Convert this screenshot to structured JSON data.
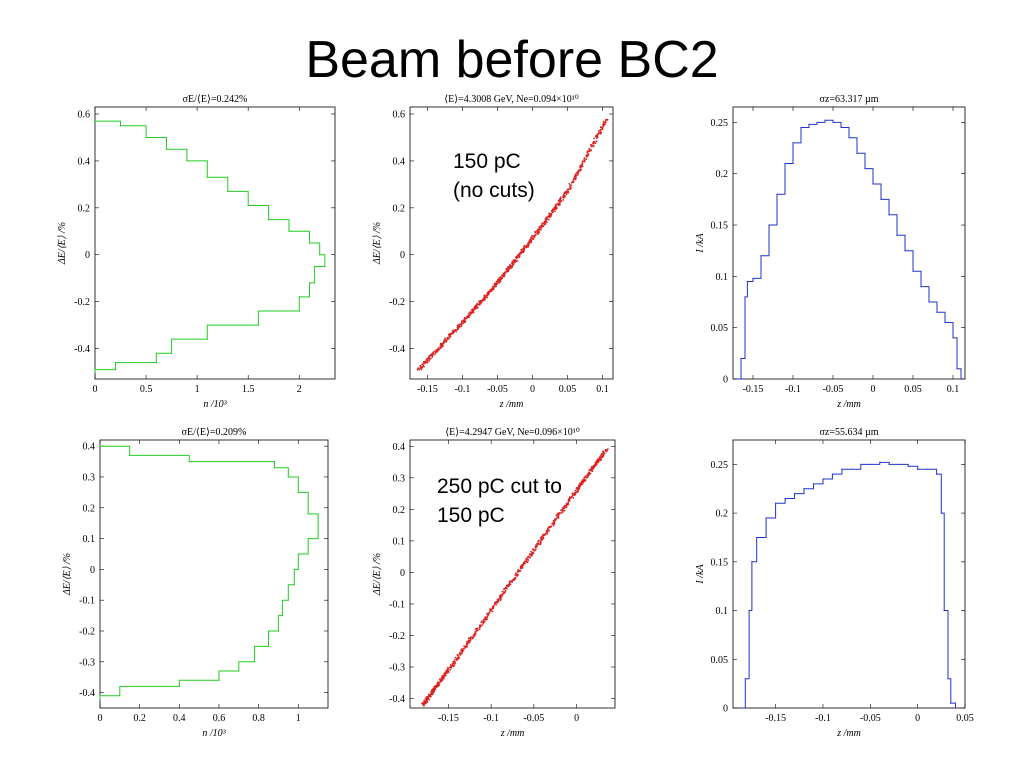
{
  "slide": {
    "title": "Beam before BC2",
    "annotation_top": "150 pC\n(no cuts)",
    "annotation_bottom": "250 pC cut to\n150 pC"
  },
  "chart_data": [
    {
      "type": "line",
      "plot_title": "σE/⟨E⟩=0.242%",
      "xlabel": "n /10³",
      "ylabel": "ΔE/⟨E⟩ /%",
      "xlim": [
        0,
        2.35
      ],
      "ylim": [
        -0.53,
        0.63
      ],
      "xticks": [
        0,
        0.5,
        1,
        1.5,
        2
      ],
      "xtick_labels": [
        "0",
        "0.5",
        "1",
        "1.5",
        "2"
      ],
      "yticks": [
        -0.4,
        -0.2,
        0,
        0.2,
        0.4,
        0.6
      ],
      "ytick_labels": [
        "-0.4",
        "-0.2",
        "0",
        "0.2",
        "0.4",
        "0.6"
      ],
      "color": "#22cc22",
      "series": [
        {
          "x": [
            0.0,
            0.25,
            0.5,
            0.7,
            0.9,
            1.1,
            1.3,
            1.5,
            1.7,
            1.9,
            2.1,
            2.2,
            2.25,
            2.15,
            2.1,
            2.0,
            1.6,
            1.1,
            0.75,
            0.6,
            0.2,
            0.0
          ],
          "y": [
            0.57,
            0.55,
            0.5,
            0.45,
            0.4,
            0.33,
            0.27,
            0.21,
            0.15,
            0.1,
            0.05,
            0.0,
            -0.05,
            -0.12,
            -0.18,
            -0.24,
            -0.3,
            -0.36,
            -0.42,
            -0.46,
            -0.49,
            -0.5
          ]
        }
      ]
    },
    {
      "type": "scatter",
      "plot_title": "⟨E⟩=4.3008 GeV, Ne=0.094×10¹⁰",
      "xlabel": "z /mm",
      "ylabel": "ΔE/⟨E⟩ /%",
      "xlim": [
        -0.175,
        0.115
      ],
      "ylim": [
        -0.53,
        0.63
      ],
      "xticks": [
        -0.15,
        -0.1,
        -0.05,
        0,
        0.05,
        0.1
      ],
      "xtick_labels": [
        "-0.15",
        "-0.1",
        "-0.05",
        "0",
        "0.05",
        "0.1"
      ],
      "yticks": [
        -0.4,
        -0.2,
        0,
        0.2,
        0.4,
        0.6
      ],
      "ytick_labels": [
        "-0.4",
        "-0.2",
        "0",
        "0.2",
        "0.4",
        "0.6"
      ],
      "color": "#dd2222",
      "series": [
        {
          "x": [
            -0.163,
            -0.1,
            -0.05,
            0.0,
            0.05,
            0.106
          ],
          "y": [
            -0.49,
            -0.29,
            -0.12,
            0.07,
            0.27,
            0.58
          ]
        }
      ]
    },
    {
      "type": "line",
      "plot_title": "σz=63.317 µm",
      "xlabel": "z /mm",
      "ylabel": "I /kA",
      "xlim": [
        -0.175,
        0.115
      ],
      "ylim": [
        0,
        0.265
      ],
      "xticks": [
        -0.15,
        -0.1,
        -0.05,
        0,
        0.05,
        0.1
      ],
      "xtick_labels": [
        "-0.15",
        "-0.1",
        "-0.05",
        "0",
        "0.05",
        "0.1"
      ],
      "yticks": [
        0,
        0.05,
        0.1,
        0.15,
        0.2,
        0.25
      ],
      "ytick_labels": [
        "0",
        "0.05",
        "0.1",
        "0.15",
        "0.2",
        "0.25"
      ],
      "color": "#2233cc",
      "series": [
        {
          "x": [
            -0.17,
            -0.165,
            -0.16,
            -0.157,
            -0.15,
            -0.14,
            -0.13,
            -0.12,
            -0.11,
            -0.1,
            -0.09,
            -0.08,
            -0.07,
            -0.06,
            -0.05,
            -0.04,
            -0.03,
            -0.02,
            -0.01,
            0.0,
            0.01,
            0.02,
            0.03,
            0.04,
            0.05,
            0.06,
            0.07,
            0.08,
            0.09,
            0.1,
            0.105,
            0.11
          ],
          "y": [
            0.0,
            0.02,
            0.08,
            0.095,
            0.098,
            0.12,
            0.15,
            0.18,
            0.21,
            0.23,
            0.245,
            0.248,
            0.25,
            0.252,
            0.25,
            0.245,
            0.235,
            0.22,
            0.205,
            0.19,
            0.175,
            0.16,
            0.14,
            0.125,
            0.105,
            0.09,
            0.075,
            0.065,
            0.055,
            0.04,
            0.01,
            0.0
          ]
        }
      ]
    },
    {
      "type": "line",
      "plot_title": "σE/⟨E⟩=0.209%",
      "xlabel": "n /10³",
      "ylabel": "ΔE/⟨E⟩ /%",
      "xlim": [
        0,
        1.15
      ],
      "ylim": [
        -0.45,
        0.42
      ],
      "xticks": [
        0,
        0.2,
        0.4,
        0.6,
        0.8,
        1
      ],
      "xtick_labels": [
        "0",
        "0.2",
        "0.4",
        "0.6",
        "0.8",
        "1"
      ],
      "yticks": [
        -0.4,
        -0.3,
        -0.2,
        -0.1,
        0,
        0.1,
        0.2,
        0.3,
        0.4
      ],
      "ytick_labels": [
        "-0.4",
        "-0.3",
        "-0.2",
        "-0.1",
        "0",
        "0.1",
        "0.2",
        "0.3",
        "0.4"
      ],
      "color": "#22cc22",
      "series": [
        {
          "x": [
            0.0,
            0.15,
            0.45,
            0.88,
            0.95,
            1.0,
            1.05,
            1.1,
            1.05,
            1.0,
            0.98,
            0.95,
            0.92,
            0.9,
            0.85,
            0.78,
            0.7,
            0.6,
            0.4,
            0.1,
            0.0
          ],
          "y": [
            0.4,
            0.37,
            0.35,
            0.33,
            0.3,
            0.25,
            0.18,
            0.1,
            0.05,
            0.0,
            -0.05,
            -0.1,
            -0.15,
            -0.2,
            -0.25,
            -0.3,
            -0.33,
            -0.36,
            -0.38,
            -0.41,
            -0.42
          ]
        }
      ]
    },
    {
      "type": "scatter",
      "plot_title": "⟨E⟩=4.2947 GeV, Ne=0.096×10¹⁰",
      "xlabel": "z /mm",
      "ylabel": "ΔE/⟨E⟩ /%",
      "xlim": [
        -0.195,
        0.045
      ],
      "ylim": [
        -0.43,
        0.42
      ],
      "xticks": [
        -0.15,
        -0.1,
        -0.05,
        0
      ],
      "xtick_labels": [
        "-0.15",
        "-0.1",
        "-0.05",
        "0"
      ],
      "yticks": [
        -0.4,
        -0.3,
        -0.2,
        -0.1,
        0,
        0.1,
        0.2,
        0.3,
        0.4
      ],
      "ytick_labels": [
        "-0.4",
        "-0.3",
        "-0.2",
        "-0.1",
        "0",
        "0.1",
        "0.2",
        "0.3",
        "0.4"
      ],
      "color": "#dd2222",
      "series": [
        {
          "x": [
            -0.18,
            -0.15,
            -0.1,
            -0.05,
            0.0,
            0.035
          ],
          "y": [
            -0.42,
            -0.31,
            -0.12,
            0.07,
            0.26,
            0.39
          ]
        }
      ]
    },
    {
      "type": "line",
      "plot_title": "σz=55.634 µm",
      "xlabel": "z /mm",
      "ylabel": "I /kA",
      "xlim": [
        -0.195,
        0.05
      ],
      "ylim": [
        0,
        0.275
      ],
      "xticks": [
        -0.15,
        -0.1,
        -0.05,
        0,
        0.05
      ],
      "xtick_labels": [
        "-0.15",
        "-0.1",
        "-0.05",
        "0",
        "0.05"
      ],
      "yticks": [
        0,
        0.05,
        0.1,
        0.15,
        0.2,
        0.25
      ],
      "ytick_labels": [
        "0",
        "0.05",
        "0.1",
        "0.15",
        "0.2",
        "0.25"
      ],
      "color": "#2233cc",
      "series": [
        {
          "x": [
            -0.185,
            -0.182,
            -0.178,
            -0.175,
            -0.17,
            -0.16,
            -0.15,
            -0.14,
            -0.13,
            -0.12,
            -0.11,
            -0.1,
            -0.09,
            -0.08,
            -0.07,
            -0.06,
            -0.05,
            -0.04,
            -0.03,
            -0.02,
            -0.01,
            0.0,
            0.01,
            0.02,
            0.025,
            0.028,
            0.032,
            0.035,
            0.04
          ],
          "y": [
            0.0,
            0.03,
            0.1,
            0.15,
            0.175,
            0.195,
            0.21,
            0.215,
            0.22,
            0.225,
            0.23,
            0.235,
            0.24,
            0.245,
            0.245,
            0.25,
            0.25,
            0.252,
            0.25,
            0.25,
            0.248,
            0.245,
            0.245,
            0.24,
            0.2,
            0.1,
            0.03,
            0.005,
            0.0
          ]
        }
      ]
    }
  ]
}
